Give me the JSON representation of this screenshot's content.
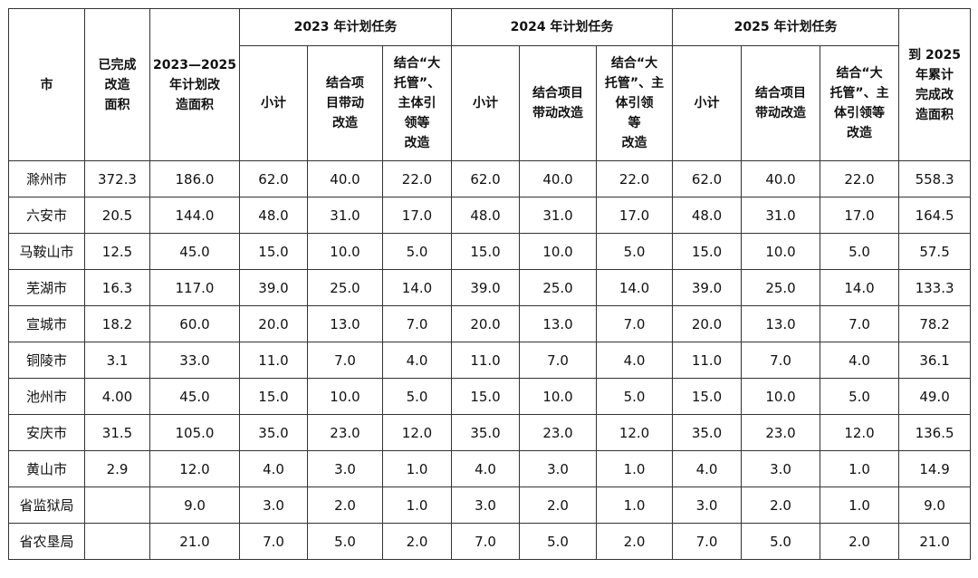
{
  "headers": {
    "city": "市",
    "completed_area": "已完成\n改造\n面积",
    "plan_area": "2023—2025\n年计划改\n造面积",
    "year_2023": "2023 年计划任务",
    "year_2024": "2024 年计划任务",
    "year_2025": "2025 年计划任务",
    "cumulative": "到 2025\n年累计\n完成改\n造面积",
    "sub_2023": [
      "小计",
      "结合项\n目带动\n改造",
      "结合“大\n托管”、\n主体引\n领等\n改造"
    ],
    "sub_2024": [
      "小计",
      "结合项目\n带动改造",
      "结合“大\n托管”、主\n体引领\n等\n改造"
    ],
    "sub_2025": [
      "小计",
      "结合项目\n带动改造",
      "结合“大\n托管”、主\n体引领等\n改造"
    ]
  },
  "rows": [
    {
      "city": "滁州市",
      "values": [
        "372.3",
        "186.0",
        "62.0",
        "40.0",
        "22.0",
        "62.0",
        "40.0",
        "22.0",
        "62.0",
        "40.0",
        "22.0",
        "558.3"
      ]
    },
    {
      "city": "六安市",
      "values": [
        "20.5",
        "144.0",
        "48.0",
        "31.0",
        "17.0",
        "48.0",
        "31.0",
        "17.0",
        "48.0",
        "31.0",
        "17.0",
        "164.5"
      ]
    },
    {
      "city": "马鞍山市",
      "values": [
        "12.5",
        "45.0",
        "15.0",
        "10.0",
        "5.0",
        "15.0",
        "10.0",
        "5.0",
        "15.0",
        "10.0",
        "5.0",
        "57.5"
      ]
    },
    {
      "city": "芜湖市",
      "values": [
        "16.3",
        "117.0",
        "39.0",
        "25.0",
        "14.0",
        "39.0",
        "25.0",
        "14.0",
        "39.0",
        "25.0",
        "14.0",
        "133.3"
      ]
    },
    {
      "city": "宣城市",
      "values": [
        "18.2",
        "60.0",
        "20.0",
        "13.0",
        "7.0",
        "20.0",
        "13.0",
        "7.0",
        "20.0",
        "13.0",
        "7.0",
        "78.2"
      ]
    },
    {
      "city": "铜陵市",
      "values": [
        "3.1",
        "33.0",
        "11.0",
        "7.0",
        "4.0",
        "11.0",
        "7.0",
        "4.0",
        "11.0",
        "7.0",
        "4.0",
        "36.1"
      ]
    },
    {
      "city": "池州市",
      "values": [
        "4.00",
        "45.0",
        "15.0",
        "10.0",
        "5.0",
        "15.0",
        "10.0",
        "5.0",
        "15.0",
        "10.0",
        "5.0",
        "49.0"
      ]
    },
    {
      "city": "安庆市",
      "values": [
        "31.5",
        "105.0",
        "35.0",
        "23.0",
        "12.0",
        "35.0",
        "23.0",
        "12.0",
        "35.0",
        "23.0",
        "12.0",
        "136.5"
      ]
    },
    {
      "city": "黄山市",
      "values": [
        "2.9",
        "12.0",
        "4.0",
        "3.0",
        "1.0",
        "4.0",
        "3.0",
        "1.0",
        "4.0",
        "3.0",
        "1.0",
        "14.9"
      ]
    },
    {
      "city": "省监狱局",
      "values": [
        "",
        "9.0",
        "3.0",
        "2.0",
        "1.0",
        "3.0",
        "2.0",
        "1.0",
        "3.0",
        "2.0",
        "1.0",
        "9.0"
      ]
    },
    {
      "city": "省农垦局",
      "values": [
        "",
        "21.0",
        "7.0",
        "5.0",
        "2.0",
        "7.0",
        "5.0",
        "2.0",
        "7.0",
        "5.0",
        "2.0",
        "21.0"
      ]
    }
  ]
}
